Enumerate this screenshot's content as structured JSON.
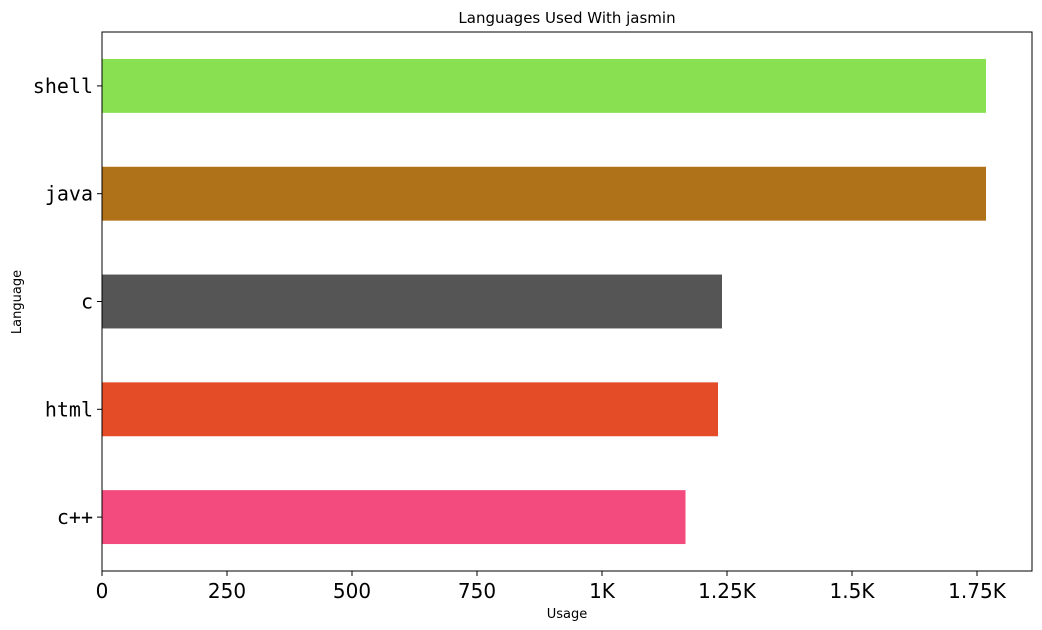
{
  "chart_data": {
    "type": "bar",
    "orientation": "horizontal",
    "title": "Languages Used With jasmin",
    "xlabel": "Usage",
    "ylabel": "Language",
    "categories": [
      "shell",
      "java",
      "c",
      "html",
      "c++"
    ],
    "values": [
      1768,
      1768,
      1240,
      1232,
      1167
    ],
    "colors": [
      "#89e051",
      "#b07219",
      "#555555",
      "#e34c26",
      "#f34b7d"
    ],
    "xlim": [
      0,
      1860
    ],
    "xticks": [
      0,
      250,
      500,
      750,
      1000,
      1250,
      1500,
      1750
    ],
    "xtick_labels": [
      "0",
      "250",
      "500",
      "750",
      "1K",
      "1.25K",
      "1.5K",
      "1.75K"
    ],
    "grid": false,
    "legend": "none"
  }
}
